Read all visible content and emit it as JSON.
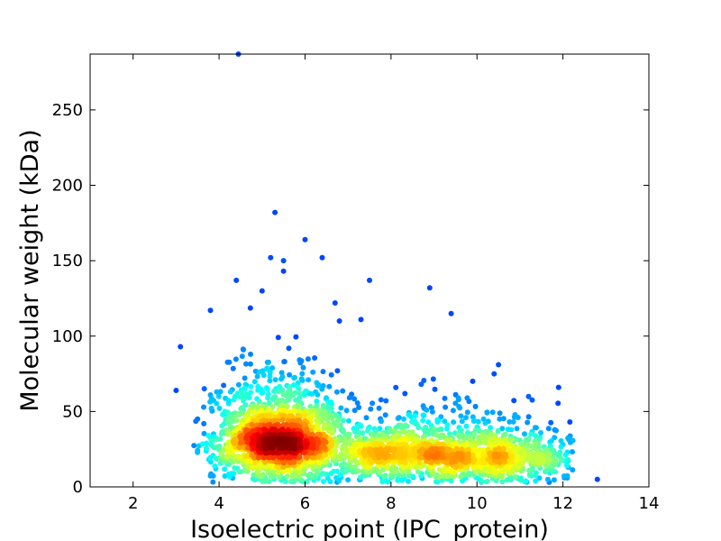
{
  "chart_data": {
    "type": "scatter",
    "xlabel": "Isoelectric point (IPC_protein)",
    "ylabel": "Molecular weight (kDa)",
    "xlim": [
      1,
      14
    ],
    "ylim": [
      0,
      287
    ],
    "xticks": [
      2,
      4,
      6,
      8,
      10,
      12,
      14
    ],
    "yticks": [
      0,
      50,
      100,
      150,
      200,
      250
    ],
    "grid": false,
    "legend": "none",
    "colormap": "jet (point density)",
    "clusters": [
      {
        "x_center": 5.4,
        "y_center": 24,
        "x_spread": 0.75,
        "y_spread": 14,
        "count": 1700
      },
      {
        "x_center": 8.5,
        "y_center": 18,
        "x_spread": 1.3,
        "y_spread": 10,
        "count": 1100
      },
      {
        "x_center": 10.8,
        "y_center": 14,
        "x_spread": 0.9,
        "y_spread": 9,
        "count": 450
      }
    ],
    "outliers": [
      {
        "x": 4.45,
        "y": 287
      },
      {
        "x": 5.3,
        "y": 182
      },
      {
        "x": 6.0,
        "y": 164
      },
      {
        "x": 6.4,
        "y": 152
      },
      {
        "x": 5.2,
        "y": 152
      },
      {
        "x": 5.5,
        "y": 150
      },
      {
        "x": 5.5,
        "y": 143
      },
      {
        "x": 4.4,
        "y": 137
      },
      {
        "x": 7.5,
        "y": 137
      },
      {
        "x": 5.0,
        "y": 130
      },
      {
        "x": 8.9,
        "y": 132
      },
      {
        "x": 6.7,
        "y": 122
      },
      {
        "x": 3.8,
        "y": 117
      },
      {
        "x": 9.4,
        "y": 115
      },
      {
        "x": 7.3,
        "y": 111
      },
      {
        "x": 6.8,
        "y": 110
      },
      {
        "x": 3.1,
        "y": 93
      },
      {
        "x": 3.0,
        "y": 64
      },
      {
        "x": 3.5,
        "y": 45
      },
      {
        "x": 3.8,
        "y": 61
      },
      {
        "x": 10.4,
        "y": 75
      },
      {
        "x": 10.5,
        "y": 81
      },
      {
        "x": 11.9,
        "y": 66
      },
      {
        "x": 11.2,
        "y": 60
      },
      {
        "x": 12.8,
        "y": 5
      },
      {
        "x": 12.1,
        "y": 6
      },
      {
        "x": 12.1,
        "y": 23
      },
      {
        "x": 9.9,
        "y": 70
      }
    ]
  }
}
